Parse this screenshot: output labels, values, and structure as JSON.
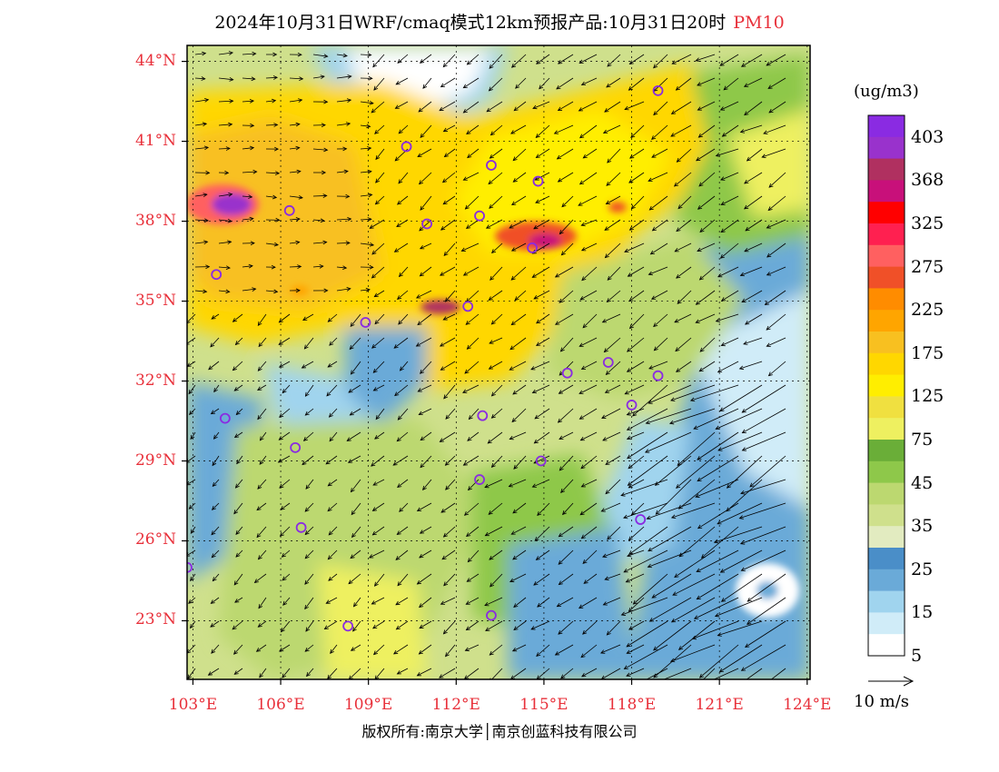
{
  "title": {
    "text": "2024年10月31日WRF/cmaq模式12km预报产品:10月31日20时",
    "variable": "PM10"
  },
  "map": {
    "latitude_labels": [
      "44°N",
      "41°N",
      "38°N",
      "35°N",
      "32°N",
      "29°N",
      "26°N",
      "23°N"
    ],
    "latitude_values": [
      44,
      41,
      38,
      35,
      32,
      29,
      26,
      23
    ],
    "longitude_labels": [
      "103°E",
      "106°E",
      "109°E",
      "112°E",
      "115°E",
      "118°E",
      "121°E",
      "124°E"
    ],
    "longitude_values": [
      103,
      106,
      109,
      112,
      115,
      118,
      121,
      124
    ],
    "lat_range": [
      20.8,
      44.6
    ],
    "lon_range": [
      102.8,
      124.1
    ],
    "city_markers": [
      {
        "lon": 110.3,
        "lat": 40.8
      },
      {
        "lon": 113.2,
        "lat": 40.1
      },
      {
        "lon": 114.8,
        "lat": 39.5
      },
      {
        "lon": 118.9,
        "lat": 42.9
      },
      {
        "lon": 106.3,
        "lat": 38.4
      },
      {
        "lon": 111.0,
        "lat": 37.9
      },
      {
        "lon": 112.8,
        "lat": 38.2
      },
      {
        "lon": 114.6,
        "lat": 37.0
      },
      {
        "lon": 103.8,
        "lat": 36.0
      },
      {
        "lon": 108.9,
        "lat": 34.2
      },
      {
        "lon": 112.4,
        "lat": 34.8
      },
      {
        "lon": 115.8,
        "lat": 32.3
      },
      {
        "lon": 117.2,
        "lat": 32.7
      },
      {
        "lon": 118.9,
        "lat": 32.2
      },
      {
        "lon": 104.1,
        "lat": 30.6
      },
      {
        "lon": 106.5,
        "lat": 29.5
      },
      {
        "lon": 112.9,
        "lat": 30.7
      },
      {
        "lon": 114.9,
        "lat": 29.0
      },
      {
        "lon": 112.8,
        "lat": 28.3
      },
      {
        "lon": 118.0,
        "lat": 31.1
      },
      {
        "lon": 106.7,
        "lat": 26.5
      },
      {
        "lon": 118.3,
        "lat": 26.8
      },
      {
        "lon": 102.8,
        "lat": 25.0
      },
      {
        "lon": 108.3,
        "lat": 22.8
      },
      {
        "lon": 113.2,
        "lat": 23.2
      }
    ]
  },
  "legend": {
    "unit": "(ug/m3)",
    "labels": [
      "403",
      "368",
      "325",
      "275",
      "225",
      "175",
      "125",
      "75",
      "45",
      "35",
      "25",
      "15",
      "5"
    ],
    "colors": [
      "#8a2be2",
      "#9932cc",
      "#b03060",
      "#c8107a",
      "#ff0000",
      "#ff2050",
      "#ff6060",
      "#f05028",
      "#ff8c00",
      "#ffa500",
      "#f8c020",
      "#ffd700",
      "#ffee00",
      "#f0e040",
      "#eef060",
      "#6aae38",
      "#8ec84a",
      "#bcd870",
      "#cfe08c",
      "#e2ebc0",
      "#4a8ec8",
      "#6aaad8",
      "#a0d4ee",
      "#d0ecf8",
      "#ffffff"
    ],
    "wind_scale_label": "10 m/s"
  },
  "copyright": "版权所有:南京大学│南京创蓝科技有限公司"
}
